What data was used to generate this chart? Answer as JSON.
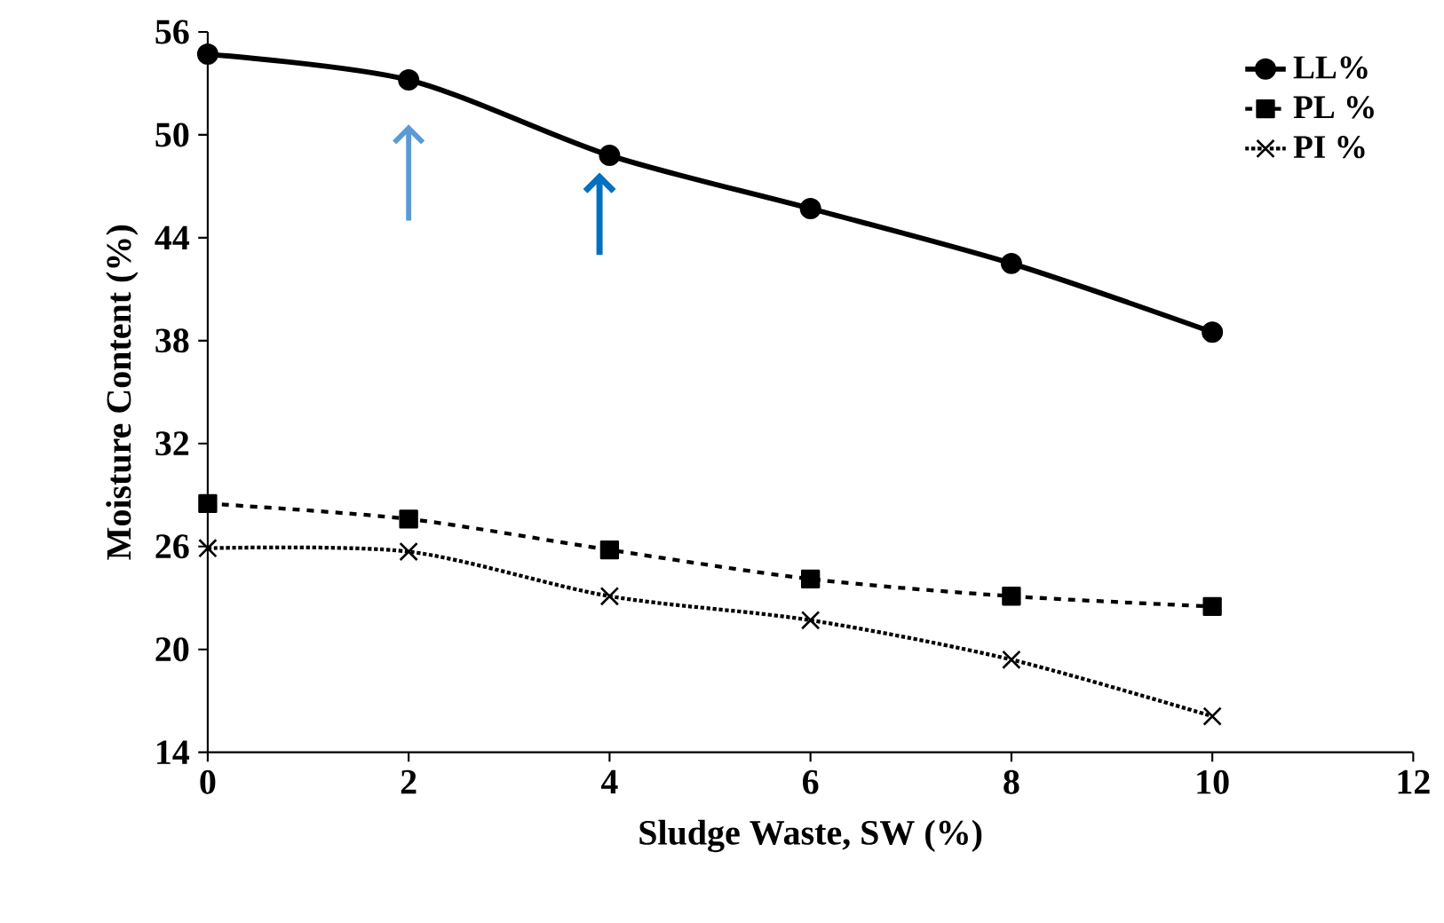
{
  "chart_data": {
    "type": "line",
    "xlabel": "Sludge Waste, SW (%)",
    "ylabel": "Moisture Content (%)",
    "x": [
      0,
      2,
      4,
      6,
      8,
      10
    ],
    "series": [
      {
        "name": "LL%",
        "color": "#000000",
        "values": [
          54.7,
          53.2,
          48.8,
          45.7,
          42.5,
          38.5
        ],
        "marker": "circle",
        "line_style": "solid"
      },
      {
        "name": "PL %",
        "color": "#000000",
        "values": [
          28.5,
          27.6,
          25.8,
          24.1,
          23.1,
          22.5
        ],
        "marker": "square",
        "line_style": "dashed"
      },
      {
        "name": "PI %",
        "color": "#000000",
        "values": [
          25.9,
          25.7,
          23.1,
          21.7,
          19.4,
          16.1
        ],
        "marker": "cross",
        "line_style": "dotted"
      }
    ],
    "xlim": [
      0,
      12
    ],
    "xticks": [
      0,
      2,
      4,
      6,
      8,
      10,
      12
    ],
    "ylim": [
      14,
      56
    ],
    "yticks": [
      14,
      20,
      26,
      32,
      38,
      44,
      50,
      56
    ],
    "grid": false,
    "legend": "top right"
  }
}
